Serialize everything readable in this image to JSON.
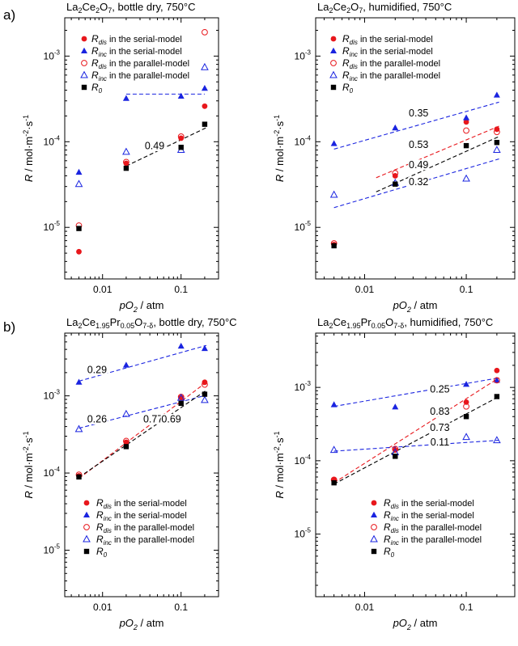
{
  "figure": {
    "row_labels": [
      "a)",
      "b)"
    ],
    "xlabel_main": "pO",
    "xlabel_sub": "2",
    "xlabel_unit": " / atm",
    "ylabel_main": "R",
    "ylabel_unit": " / mol·m",
    "ylabel_exp1": "-2",
    "ylabel_dot": "·s",
    "ylabel_exp2": "-1"
  },
  "legend_text": {
    "serial": " in the serial-model",
    "parallel": " in the parallel-model",
    "sub_dis": "dis",
    "sub_inc": "inc",
    "sub_0": "0"
  },
  "colors": {
    "red": "#e8171c",
    "blue": "#1a24e0",
    "black": "#000000"
  },
  "chart_data": [
    {
      "type": "scatter",
      "panel": "a-left",
      "title": "La2Ce2O7, bottle dry, 750°C",
      "title_parts": [
        "La",
        "2",
        "Ce",
        "2",
        "O",
        "7",
        ", bottle dry, 750°C"
      ],
      "title_subs": [
        false,
        true,
        false,
        true,
        false,
        true,
        false
      ],
      "x_scale": "log",
      "y_scale": "log",
      "xlim": [
        0.0033,
        0.3
      ],
      "ylim": [
        2.5e-06,
        0.0028
      ],
      "x_ticks": [
        {
          "v": 0.01,
          "label": "0.01"
        },
        {
          "v": 0.1,
          "label": "0.1"
        }
      ],
      "y_ticks": [
        {
          "v": 1e-05,
          "m": "10",
          "e": "-5"
        },
        {
          "v": 0.0001,
          "m": "10",
          "e": "-4"
        },
        {
          "v": 0.001,
          "m": "10",
          "e": "-3"
        }
      ],
      "legend_position": "top-left",
      "series": [
        {
          "name": "R_dis in the serial-model",
          "marker": "circle-filled",
          "color": "red",
          "x": [
            0.005,
            0.02,
            0.1,
            0.2
          ],
          "y": [
            5.2e-06,
            5.6e-05,
            0.00011,
            0.00026
          ]
        },
        {
          "name": "R_inc in the serial-model",
          "marker": "triangle-filled",
          "color": "blue",
          "x": [
            0.005,
            0.02,
            0.1,
            0.2
          ],
          "y": [
            4.4e-05,
            0.00032,
            0.00034,
            0.00042
          ]
        },
        {
          "name": "R_dis in the parallel-model",
          "marker": "circle-open",
          "color": "red",
          "x": [
            0.005,
            0.02,
            0.1,
            0.2
          ],
          "y": [
            1.05e-05,
            5.8e-05,
            0.000115,
            0.0019
          ]
        },
        {
          "name": "R_inc in the parallel-model",
          "marker": "triangle-open",
          "color": "blue",
          "x": [
            0.005,
            0.02,
            0.1,
            0.2
          ],
          "y": [
            3.2e-05,
            7.6e-05,
            8e-05,
            0.00074
          ]
        },
        {
          "name": "R_0",
          "marker": "square-filled",
          "color": "black",
          "x": [
            0.005,
            0.02,
            0.1,
            0.2
          ],
          "y": [
            9.7e-06,
            4.9e-05,
            8.6e-05,
            0.00016
          ]
        }
      ],
      "fit_lines": [
        {
          "color": "blue",
          "x": [
            0.02,
            0.2
          ],
          "y": [
            0.00036,
            0.00036
          ]
        },
        {
          "color": "black",
          "x": [
            0.02,
            0.21
          ],
          "y": [
            5.2e-05,
            0.000146
          ]
        }
      ],
      "annotations": [
        {
          "text": "0.49",
          "x": 0.046,
          "y": 8.45e-05
        }
      ]
    },
    {
      "type": "scatter",
      "panel": "a-right",
      "title": "La2Ce2O7, humidified, 750°C",
      "title_parts": [
        "La",
        "2",
        "Ce",
        "2",
        "O",
        "7",
        ", humidified, 750°C"
      ],
      "title_subs": [
        false,
        true,
        false,
        true,
        false,
        true,
        false
      ],
      "x_scale": "log",
      "y_scale": "log",
      "xlim": [
        0.0033,
        0.3
      ],
      "ylim": [
        2.5e-06,
        0.0028
      ],
      "x_ticks": [
        {
          "v": 0.01,
          "label": "0.01"
        },
        {
          "v": 0.1,
          "label": "0.1"
        }
      ],
      "y_ticks": [
        {
          "v": 1e-05,
          "m": "10",
          "e": "-5"
        },
        {
          "v": 0.0001,
          "m": "10",
          "e": "-4"
        },
        {
          "v": 0.001,
          "m": "10",
          "e": "-3"
        }
      ],
      "legend_position": "top-left",
      "series": [
        {
          "name": "R_dis in the serial-model",
          "marker": "circle-filled",
          "color": "red",
          "x": [
            0.005,
            0.02,
            0.1,
            0.2
          ],
          "y": [
            6.3e-06,
            4e-05,
            0.00017,
            0.00014
          ]
        },
        {
          "name": "R_inc in the serial-model",
          "marker": "triangle-filled",
          "color": "blue",
          "x": [
            0.005,
            0.02,
            0.1,
            0.2
          ],
          "y": [
            9.5e-05,
            0.000145,
            0.00019,
            0.00035
          ]
        },
        {
          "name": "R_dis in the parallel-model",
          "marker": "circle-open",
          "color": "red",
          "x": [
            0.005,
            0.02,
            0.1,
            0.2
          ],
          "y": [
            6.5e-06,
            4.3e-05,
            0.000135,
            0.00013
          ]
        },
        {
          "name": "R_inc in the parallel-model",
          "marker": "triangle-open",
          "color": "blue",
          "x": [
            0.005,
            0.02,
            0.1,
            0.2
          ],
          "y": [
            2.4e-05,
            3.3e-05,
            3.7e-05,
            8e-05
          ]
        },
        {
          "name": "R_0",
          "marker": "square-filled",
          "color": "black",
          "x": [
            0.005,
            0.02,
            0.1,
            0.2
          ],
          "y": [
            6.1e-06,
            3.2e-05,
            9e-05,
            9.8e-05
          ]
        }
      ],
      "fit_lines": [
        {
          "color": "blue",
          "x": [
            0.005,
            0.21
          ],
          "y": [
            8.2e-05,
            0.00029
          ]
        },
        {
          "color": "red",
          "x": [
            0.013,
            0.21
          ],
          "y": [
            3.8e-05,
            0.000152
          ]
        },
        {
          "color": "black",
          "x": [
            0.013,
            0.21
          ],
          "y": [
            2.6e-05,
            0.000115
          ]
        },
        {
          "color": "blue",
          "x": [
            0.005,
            0.21
          ],
          "y": [
            1.7e-05,
            6.3e-05
          ]
        }
      ],
      "annotations": [
        {
          "text": "0.35",
          "x": 0.034,
          "y": 0.000205
        },
        {
          "text": "0.53",
          "x": 0.034,
          "y": 8.7e-05
        },
        {
          "text": "0.49",
          "x": 0.034,
          "y": 5.1e-05
        },
        {
          "text": "0.32",
          "x": 0.034,
          "y": 3.2e-05
        }
      ]
    },
    {
      "type": "scatter",
      "panel": "b-left",
      "title": "La2Ce1.95Pr0.05O7-δ, bottle dry, 750°C",
      "title_parts": [
        "La",
        "2",
        "Ce",
        "1.95",
        "Pr",
        "0.05",
        "O",
        "7-δ",
        ", bottle dry, 750°C"
      ],
      "title_subs": [
        false,
        true,
        false,
        true,
        false,
        true,
        false,
        true,
        false
      ],
      "x_scale": "log",
      "y_scale": "log",
      "xlim": [
        0.0033,
        0.3
      ],
      "ylim": [
        2.5e-06,
        0.0065
      ],
      "x_ticks": [
        {
          "v": 0.01,
          "label": "0.01"
        },
        {
          "v": 0.1,
          "label": "0.1"
        }
      ],
      "y_ticks": [
        {
          "v": 1e-05,
          "m": "10",
          "e": "-5"
        },
        {
          "v": 0.0001,
          "m": "10",
          "e": "-4"
        },
        {
          "v": 0.001,
          "m": "10",
          "e": "-3"
        }
      ],
      "legend_position": "bottom-right",
      "series": [
        {
          "name": "R_dis in the serial-model",
          "marker": "circle-filled",
          "color": "red",
          "x": [
            0.005,
            0.02,
            0.1,
            0.2
          ],
          "y": [
            9.2e-05,
            0.00025,
            0.00095,
            0.0015
          ]
        },
        {
          "name": "R_inc in the serial-model",
          "marker": "triangle-filled",
          "color": "blue",
          "x": [
            0.005,
            0.02,
            0.1,
            0.2
          ],
          "y": [
            0.0015,
            0.0025,
            0.0044,
            0.0041
          ]
        },
        {
          "name": "R_dis in the parallel-model",
          "marker": "circle-open",
          "color": "red",
          "x": [
            0.005,
            0.02,
            0.1,
            0.2
          ],
          "y": [
            9.5e-05,
            0.00026,
            0.00097,
            0.0014
          ]
        },
        {
          "name": "R_inc in the parallel-model",
          "marker": "triangle-open",
          "color": "blue",
          "x": [
            0.005,
            0.02,
            0.1,
            0.2
          ],
          "y": [
            0.00037,
            0.00058,
            0.00094,
            0.00088
          ]
        },
        {
          "name": "R_0",
          "marker": "square-filled",
          "color": "black",
          "x": [
            0.005,
            0.02,
            0.1,
            0.2
          ],
          "y": [
            8.9e-05,
            0.00022,
            0.0008,
            0.00105
          ]
        }
      ],
      "fit_lines": [
        {
          "color": "blue",
          "x": [
            0.005,
            0.21
          ],
          "y": [
            0.00155,
            0.0045
          ]
        },
        {
          "color": "blue",
          "x": [
            0.005,
            0.21
          ],
          "y": [
            0.00038,
            0.00102
          ]
        },
        {
          "color": "red",
          "x": [
            0.005,
            0.21
          ],
          "y": [
            8.5e-05,
            0.0015
          ]
        },
        {
          "color": "black",
          "x": [
            0.005,
            0.21
          ],
          "y": [
            8.8e-05,
            0.00118
          ]
        }
      ],
      "annotations": [
        {
          "text": "0.29",
          "x": 0.0085,
          "y": 0.00205
        },
        {
          "text": "0.26",
          "x": 0.0085,
          "y": 0.00047
        },
        {
          "text": "0.77",
          "x": 0.044,
          "y": 0.00047
        },
        {
          "text": "0.69",
          "x": 0.075,
          "y": 0.00047
        }
      ]
    },
    {
      "type": "scatter",
      "panel": "b-right",
      "title": "La2Ce1.95Pr0.05O7-δ, humidified, 750°C",
      "title_parts": [
        "La",
        "2",
        "Ce",
        "1.95",
        "Pr",
        "0.05",
        "O",
        "7-δ",
        ", humidified, 750°C"
      ],
      "title_subs": [
        false,
        true,
        false,
        true,
        false,
        true,
        false,
        true,
        false
      ],
      "x_scale": "log",
      "y_scale": "log",
      "xlim": [
        0.0033,
        0.3
      ],
      "ylim": [
        1.4e-06,
        0.0055
      ],
      "x_ticks": [
        {
          "v": 0.01,
          "label": "0.01"
        },
        {
          "v": 0.1,
          "label": "0.1"
        }
      ],
      "y_ticks": [
        {
          "v": 1e-05,
          "m": "10",
          "e": "-5"
        },
        {
          "v": 0.0001,
          "m": "10",
          "e": "-4"
        },
        {
          "v": 0.001,
          "m": "10",
          "e": "-3"
        }
      ],
      "legend_position": "bottom-right",
      "series": [
        {
          "name": "R_dis in the serial-model",
          "marker": "circle-filled",
          "color": "red",
          "x": [
            0.005,
            0.02,
            0.1,
            0.2
          ],
          "y": [
            5.5e-05,
            0.00014,
            0.00063,
            0.0017
          ]
        },
        {
          "name": "R_inc in the serial-model",
          "marker": "triangle-filled",
          "color": "blue",
          "x": [
            0.005,
            0.02,
            0.1,
            0.2
          ],
          "y": [
            0.00058,
            0.00054,
            0.0011,
            0.00125
          ]
        },
        {
          "name": "R_dis in the parallel-model",
          "marker": "circle-open",
          "color": "red",
          "x": [
            0.005,
            0.02,
            0.1,
            0.2
          ],
          "y": [
            5.5e-05,
            0.000145,
            0.00055,
            0.00125
          ]
        },
        {
          "name": "R_inc in the parallel-model",
          "marker": "triangle-open",
          "color": "blue",
          "x": [
            0.005,
            0.02,
            0.1,
            0.2
          ],
          "y": [
            0.00014,
            0.00013,
            0.00021,
            0.00019
          ]
        },
        {
          "name": "R_0",
          "marker": "square-filled",
          "color": "black",
          "x": [
            0.005,
            0.02,
            0.1,
            0.2
          ],
          "y": [
            5e-05,
            0.000115,
            0.0004,
            0.00075
          ]
        }
      ],
      "fit_lines": [
        {
          "color": "blue",
          "x": [
            0.005,
            0.21
          ],
          "y": [
            0.00055,
            0.00135
          ]
        },
        {
          "color": "red",
          "x": [
            0.005,
            0.21
          ],
          "y": [
            5e-05,
            0.00135
          ]
        },
        {
          "color": "black",
          "x": [
            0.005,
            0.21
          ],
          "y": [
            4.8e-05,
            0.00075
          ]
        },
        {
          "color": "blue",
          "x": [
            0.005,
            0.21
          ],
          "y": [
            0.000135,
            0.00019
          ]
        }
      ],
      "annotations": [
        {
          "text": "0.25",
          "x": 0.055,
          "y": 0.00088
        },
        {
          "text": "0.83",
          "x": 0.055,
          "y": 0.00044
        },
        {
          "text": "0.73",
          "x": 0.055,
          "y": 0.000265
        },
        {
          "text": "0.11",
          "x": 0.055,
          "y": 0.000168
        }
      ]
    }
  ]
}
